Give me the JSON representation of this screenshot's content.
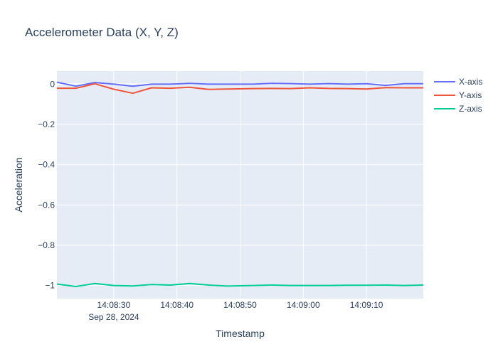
{
  "chart_data": {
    "type": "line",
    "title": "Accelerometer Data (X, Y, Z)",
    "xlabel": "Timestamp",
    "ylabel": "Acceleration",
    "x_axis_type": "time",
    "x_range": [
      "2024-09-28 14:08:21",
      "2024-09-28 14:09:19"
    ],
    "ylim": [
      -1.065,
      0.065
    ],
    "x_ticks": [
      {
        "time": "2024-09-28 14:08:30",
        "label": "14:08:30",
        "sublabel": "Sep 28, 2024"
      },
      {
        "time": "2024-09-28 14:08:40",
        "label": "14:08:40",
        "sublabel": ""
      },
      {
        "time": "2024-09-28 14:08:50",
        "label": "14:08:50",
        "sublabel": ""
      },
      {
        "time": "2024-09-28 14:09:00",
        "label": "14:09:00",
        "sublabel": ""
      },
      {
        "time": "2024-09-28 14:09:10",
        "label": "14:09:10",
        "sublabel": ""
      }
    ],
    "y_ticks": [
      {
        "value": 0,
        "label": "0"
      },
      {
        "value": -0.2,
        "label": "−0.2"
      },
      {
        "value": -0.4,
        "label": "−0.4"
      },
      {
        "value": -0.6,
        "label": "−0.6"
      },
      {
        "value": -0.8,
        "label": "−0.8"
      },
      {
        "value": -1,
        "label": "−1"
      }
    ],
    "grid": true,
    "legend_position": "top-right",
    "x": [
      "2024-09-28 14:08:21",
      "2024-09-28 14:08:24",
      "2024-09-28 14:08:27",
      "2024-09-28 14:08:30",
      "2024-09-28 14:08:33",
      "2024-09-28 14:08:36",
      "2024-09-28 14:08:39",
      "2024-09-28 14:08:42",
      "2024-09-28 14:08:45",
      "2024-09-28 14:08:48",
      "2024-09-28 14:08:52",
      "2024-09-28 14:08:55",
      "2024-09-28 14:08:58",
      "2024-09-28 14:09:01",
      "2024-09-28 14:09:04",
      "2024-09-28 14:09:07",
      "2024-09-28 14:09:10",
      "2024-09-28 14:09:13",
      "2024-09-28 14:09:16",
      "2024-09-28 14:09:19"
    ],
    "series": [
      {
        "name": "X-axis",
        "color": "#636efa",
        "values": [
          0.01,
          -0.01,
          0.008,
          0.0,
          -0.01,
          0.0,
          0.0,
          0.004,
          0.0,
          0.0,
          0.0,
          0.004,
          0.003,
          0.0,
          0.003,
          0.0,
          0.002,
          -0.006,
          0.002,
          0.002
        ]
      },
      {
        "name": "Y-axis",
        "color": "#ef553b",
        "values": [
          -0.02,
          -0.02,
          0.002,
          -0.025,
          -0.045,
          -0.018,
          -0.02,
          -0.015,
          -0.026,
          -0.024,
          -0.022,
          -0.021,
          -0.022,
          -0.018,
          -0.021,
          -0.022,
          -0.024,
          -0.017,
          -0.018,
          -0.018
        ]
      },
      {
        "name": "Z-axis",
        "color": "#00cc96",
        "values": [
          -0.993,
          -1.005,
          -0.99,
          -1.0,
          -1.002,
          -0.995,
          -0.998,
          -0.99,
          -0.998,
          -1.003,
          -1.0,
          -0.998,
          -1.0,
          -1.0,
          -1.0,
          -0.999,
          -0.999,
          -0.998,
          -1.0,
          -0.998
        ]
      }
    ]
  }
}
